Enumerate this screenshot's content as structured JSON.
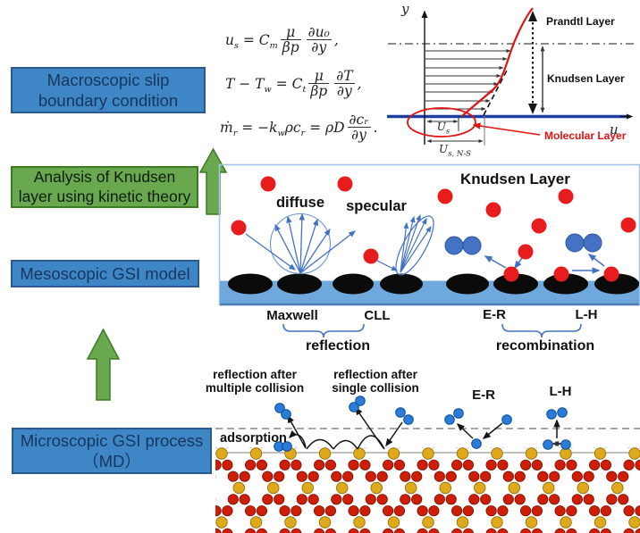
{
  "left_column": {
    "boxes": [
      {
        "id": "macroscopic",
        "lines": [
          "Macroscopic slip",
          "boundary condition"
        ]
      },
      {
        "id": "kinetic",
        "lines": [
          "Analysis of Knudsen",
          "layer using kinetic theory"
        ]
      },
      {
        "id": "mesoscopic",
        "lines": [
          "Mesoscopic GSI model",
          ""
        ]
      },
      {
        "id": "microscopic",
        "lines": [
          "Microscopic GSI process",
          "（MD）"
        ]
      }
    ]
  },
  "equations": [
    {
      "tokens": [
        {
          "t": "u"
        },
        {
          "s": "s"
        },
        {
          "t": " = C"
        },
        {
          "s": "m"
        },
        {
          "f": [
            "μ",
            "βp"
          ]
        },
        {
          "f": [
            "∂u₀",
            "∂y"
          ]
        },
        {
          "t": ","
        }
      ]
    },
    {
      "tokens": [
        {
          "t": "T − T"
        },
        {
          "s": "w"
        },
        {
          "t": " = C"
        },
        {
          "s": "t"
        },
        {
          "f": [
            "μ",
            "βp"
          ]
        },
        {
          "f": [
            "∂T",
            "∂y"
          ]
        },
        {
          "t": ","
        }
      ]
    },
    {
      "tokens": [
        {
          "t": "ṁ"
        },
        {
          "s": "r"
        },
        {
          "t": " = −k"
        },
        {
          "s": "w"
        },
        {
          "t": "ρc"
        },
        {
          "s": "r"
        },
        {
          "t": " = ρD"
        },
        {
          "f": [
            "∂cᵣ",
            "∂y"
          ]
        },
        {
          "t": "."
        }
      ]
    }
  ],
  "plot": {
    "y_axis_label": "y",
    "u_axis_label": "u",
    "prandtl_label": "Prandtl Layer",
    "knudsen_label": "Knudsen Layer",
    "molecular_label": "Molecular Layer",
    "us_base": "U",
    "us_sub": "s",
    "usns_base": "U",
    "usns_sub": "s, N-S"
  },
  "kinetic_panel": {
    "title": "Knudsen Layer",
    "diffuse_label": "diffuse",
    "specular_label": "specular",
    "maxwell_label": "Maxwell",
    "cll_label": "CLL",
    "er_label": "E-R",
    "lh_label": "L-H",
    "reflection_label": "reflection",
    "recombination_label": "recombination"
  },
  "md_panel": {
    "multi_collision_lines": [
      "reflection after",
      "multiple collision"
    ],
    "single_collision_lines": [
      "reflection after",
      "single collision"
    ],
    "adsorption_label": "adsorption",
    "er_label": "E-R",
    "lh_label": "L-H"
  },
  "colors": {
    "box_blue": "#3F86C6",
    "box_green": "#6AA84F",
    "arrow_green": "#6AA84F",
    "surface_band_blue": "#6FA8DC",
    "surface_site_black": "#0B0B0B",
    "molecule_red": "#E81C1C",
    "molecule_blue": "#4472C4",
    "md_molecule_blue": "#2B7CD9",
    "lattice_yellow": "#DFA91C",
    "lattice_red": "#CF1D08",
    "wall_blue": "#1C3FA0",
    "curve_red": "#E01212"
  }
}
